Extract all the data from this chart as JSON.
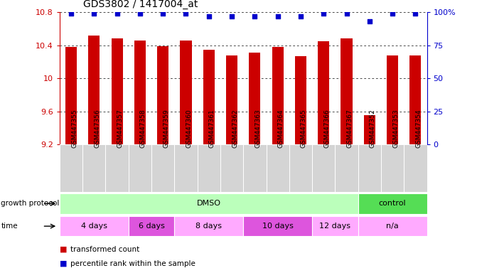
{
  "title": "GDS3802 / 1417004_at",
  "samples": [
    "GSM447355",
    "GSM447356",
    "GSM447357",
    "GSM447358",
    "GSM447359",
    "GSM447360",
    "GSM447361",
    "GSM447362",
    "GSM447363",
    "GSM447364",
    "GSM447365",
    "GSM447366",
    "GSM447367",
    "GSM447352",
    "GSM447353",
    "GSM447354"
  ],
  "bar_values": [
    10.38,
    10.52,
    10.48,
    10.46,
    10.39,
    10.46,
    10.35,
    10.28,
    10.31,
    10.38,
    10.27,
    10.45,
    10.48,
    9.55,
    10.28,
    10.28
  ],
  "dot_values": [
    99,
    99,
    99,
    99,
    99,
    99,
    97,
    97,
    97,
    97,
    97,
    99,
    99,
    93,
    99,
    99
  ],
  "ymin": 9.2,
  "ymax": 10.8,
  "yticks_left": [
    9.2,
    9.6,
    10.0,
    10.4,
    10.8
  ],
  "ytick_left_labels": [
    "9.2",
    "9.6",
    "10",
    "10.4",
    "10.8"
  ],
  "yticks_right": [
    0,
    25,
    50,
    75,
    100
  ],
  "ytick_right_labels": [
    "0",
    "25",
    "50",
    "75",
    "100%"
  ],
  "bar_color": "#cc0000",
  "dot_color": "#0000cc",
  "left_axis_color": "#cc0000",
  "right_axis_color": "#0000cc",
  "sample_bg": "#d4d4d4",
  "protocol_segments": [
    {
      "label": "DMSO",
      "start": 0,
      "end": 13,
      "color": "#bbffbb"
    },
    {
      "label": "control",
      "start": 13,
      "end": 16,
      "color": "#55dd55"
    }
  ],
  "time_segments": [
    {
      "label": "4 days",
      "start": 0,
      "end": 3,
      "color": "#ffaaff"
    },
    {
      "label": "6 days",
      "start": 3,
      "end": 5,
      "color": "#dd55dd"
    },
    {
      "label": "8 days",
      "start": 5,
      "end": 8,
      "color": "#ffaaff"
    },
    {
      "label": "10 days",
      "start": 8,
      "end": 11,
      "color": "#dd55dd"
    },
    {
      "label": "12 days",
      "start": 11,
      "end": 13,
      "color": "#ffaaff"
    },
    {
      "label": "n/a",
      "start": 13,
      "end": 16,
      "color": "#ffaaff"
    }
  ],
  "legend": [
    {
      "label": "transformed count",
      "color": "#cc0000"
    },
    {
      "label": "percentile rank within the sample",
      "color": "#0000cc"
    }
  ],
  "fig_width": 6.71,
  "fig_height": 3.84,
  "dpi": 100
}
